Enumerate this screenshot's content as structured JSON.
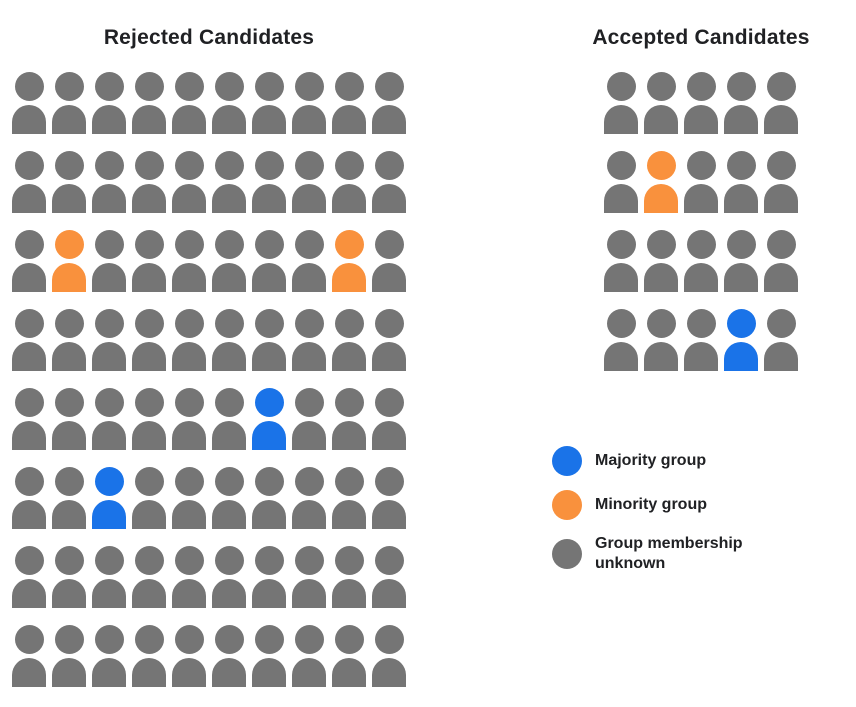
{
  "chart_data": {
    "type": "pictograph",
    "groups": [
      {
        "key": "rejected",
        "title": "Rejected Candidates",
        "rows": 8,
        "cols": 10,
        "total": 80,
        "default_group": "unknown",
        "special": [
          {
            "row": 3,
            "col": 2,
            "group": "minority"
          },
          {
            "row": 3,
            "col": 9,
            "group": "minority"
          },
          {
            "row": 5,
            "col": 7,
            "group": "majority"
          },
          {
            "row": 6,
            "col": 3,
            "group": "majority"
          }
        ],
        "counts": {
          "majority": 2,
          "minority": 2,
          "unknown": 76
        }
      },
      {
        "key": "accepted",
        "title": "Accepted Candidates",
        "rows": 4,
        "cols": 5,
        "total": 20,
        "default_group": "unknown",
        "special": [
          {
            "row": 2,
            "col": 2,
            "group": "minority"
          },
          {
            "row": 4,
            "col": 4,
            "group": "majority"
          }
        ],
        "counts": {
          "majority": 1,
          "minority": 1,
          "unknown": 18
        }
      }
    ],
    "legend": [
      {
        "key": "majority",
        "label": "Majority group",
        "color": "#1A73E8"
      },
      {
        "key": "minority",
        "label": "Minority group",
        "color": "#F9913D"
      },
      {
        "key": "unknown",
        "label": "Group membership unknown",
        "color": "#757575"
      }
    ],
    "layout": {
      "legend_position": "right-bottom",
      "grid": "off",
      "axes": "none"
    }
  },
  "colors": {
    "majority_blue": "#1A73E8",
    "minority_orange": "#F9913D",
    "unknown_gray": "#757575",
    "text": "#202124",
    "background": "#FFFFFF"
  }
}
